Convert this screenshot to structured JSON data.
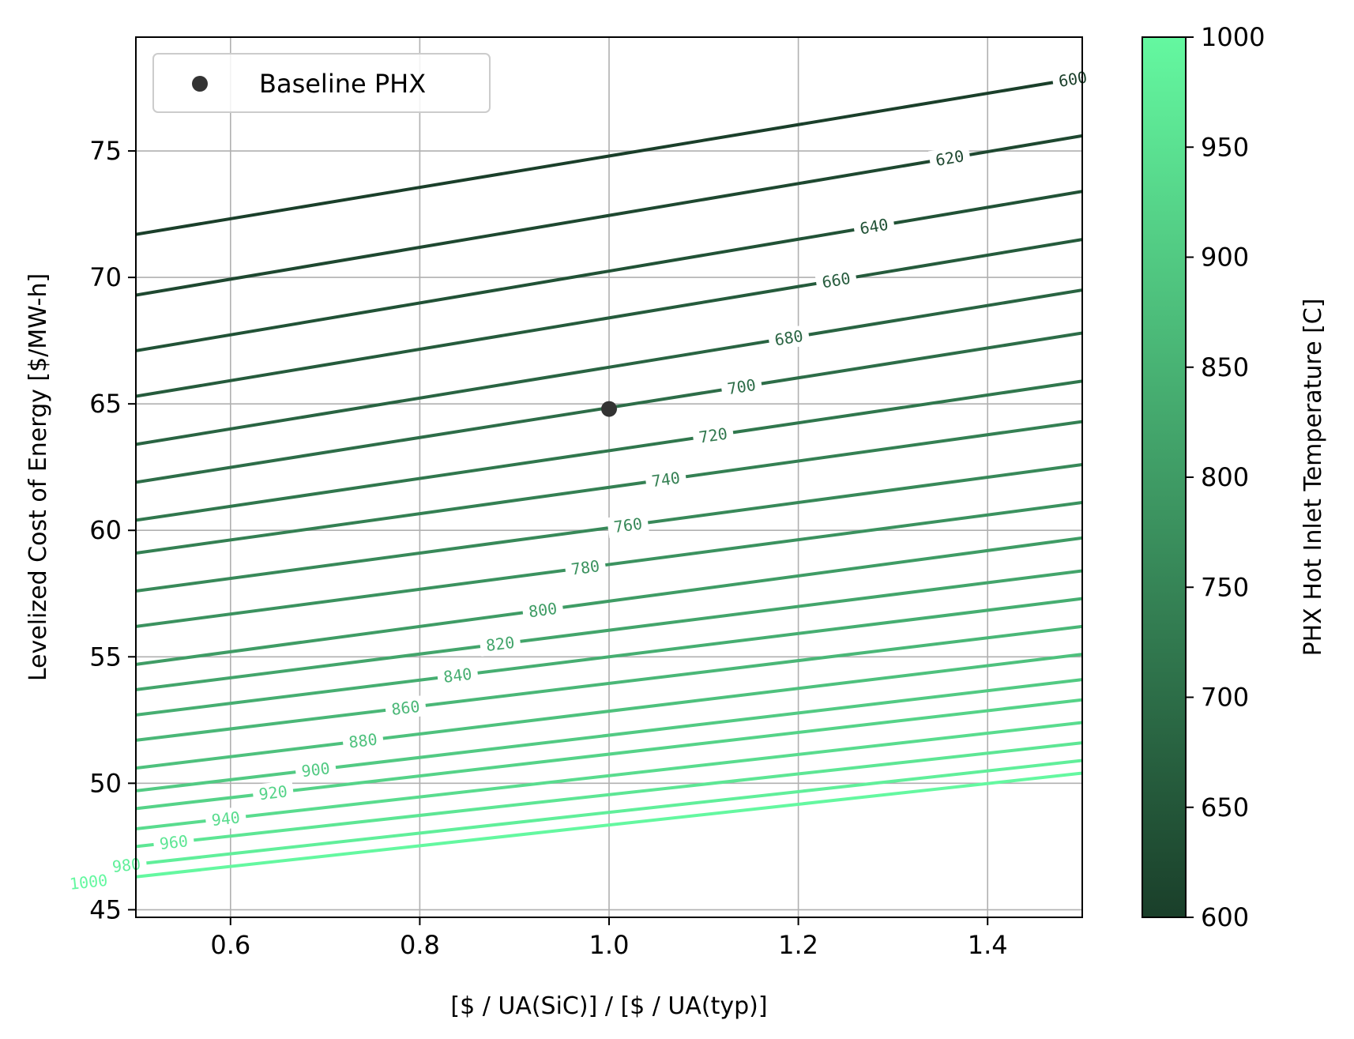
{
  "chart_data": {
    "type": "contour",
    "xlabel": "[$ / UA(SiC)] / [$ / UA(typ)]",
    "ylabel": "Levelized Cost of Energy [$/MW-h]",
    "xlim": [
      0.5,
      1.5
    ],
    "ylim": [
      44.7,
      79.5
    ],
    "xticks": [
      0.6,
      0.8,
      1.0,
      1.2,
      1.4
    ],
    "xtick_labels": [
      "0.6",
      "0.8",
      "1.0",
      "1.2",
      "1.4"
    ],
    "yticks": [
      45,
      50,
      55,
      60,
      65,
      70,
      75
    ],
    "ytick_labels": [
      "45",
      "50",
      "55",
      "60",
      "65",
      "70",
      "75"
    ],
    "grid": true,
    "legend": {
      "placement": "upper-left",
      "entries": [
        "Baseline PHX"
      ]
    },
    "baseline_point": {
      "name": "Baseline PHX",
      "x": 1.0,
      "y": 64.8,
      "color": "#333333"
    },
    "contours": [
      {
        "level": 600,
        "label": "600",
        "y_at_x0_5": 71.7,
        "y_at_x1_5": 77.9,
        "label_x": 1.49
      },
      {
        "level": 620,
        "label": "620",
        "y_at_x0_5": 69.3,
        "y_at_x1_5": 75.6,
        "label_x": 1.36
      },
      {
        "level": 640,
        "label": "640",
        "y_at_x0_5": 67.1,
        "y_at_x1_5": 73.4,
        "label_x": 1.28
      },
      {
        "level": 660,
        "label": "660",
        "y_at_x0_5": 65.3,
        "y_at_x1_5": 71.5,
        "label_x": 1.24
      },
      {
        "level": 680,
        "label": "680",
        "y_at_x0_5": 63.4,
        "y_at_x1_5": 69.5,
        "label_x": 1.19
      },
      {
        "level": 700,
        "label": "700",
        "y_at_x0_5": 61.9,
        "y_at_x1_5": 67.8,
        "label_x": 1.14
      },
      {
        "level": 720,
        "label": "720",
        "y_at_x0_5": 60.4,
        "y_at_x1_5": 65.9,
        "label_x": 1.11
      },
      {
        "level": 740,
        "label": "740",
        "y_at_x0_5": 59.1,
        "y_at_x1_5": 64.3,
        "label_x": 1.06
      },
      {
        "level": 760,
        "label": "760",
        "y_at_x0_5": 57.6,
        "y_at_x1_5": 62.6,
        "label_x": 1.02
      },
      {
        "level": 780,
        "label": "780",
        "y_at_x0_5": 56.2,
        "y_at_x1_5": 61.1,
        "label_x": 0.975
      },
      {
        "level": 800,
        "label": "800",
        "y_at_x0_5": 54.7,
        "y_at_x1_5": 59.7,
        "label_x": 0.93
      },
      {
        "level": 820,
        "label": "820",
        "y_at_x0_5": 53.7,
        "y_at_x1_5": 58.4,
        "label_x": 0.885
      },
      {
        "level": 840,
        "label": "840",
        "y_at_x0_5": 52.7,
        "y_at_x1_5": 57.3,
        "label_x": 0.84
      },
      {
        "level": 860,
        "label": "860",
        "y_at_x0_5": 51.7,
        "y_at_x1_5": 56.2,
        "label_x": 0.785
      },
      {
        "level": 880,
        "label": "880",
        "y_at_x0_5": 50.6,
        "y_at_x1_5": 55.1,
        "label_x": 0.74
      },
      {
        "level": 900,
        "label": "900",
        "y_at_x0_5": 49.7,
        "y_at_x1_5": 54.1,
        "label_x": 0.69
      },
      {
        "level": 920,
        "label": "920",
        "y_at_x0_5": 49.0,
        "y_at_x1_5": 53.3,
        "label_x": 0.645
      },
      {
        "level": 940,
        "label": "940",
        "y_at_x0_5": 48.2,
        "y_at_x1_5": 52.4,
        "label_x": 0.595
      },
      {
        "level": 960,
        "label": "960",
        "y_at_x0_5": 47.5,
        "y_at_x1_5": 51.6,
        "label_x": 0.54
      },
      {
        "level": 980,
        "label": "980",
        "y_at_x0_5": 46.8,
        "y_at_x1_5": 50.9,
        "label_x": 0.49
      },
      {
        "level": 1000,
        "label": "1000",
        "y_at_x0_5": 46.3,
        "y_at_x1_5": 50.4,
        "label_x": 0.45
      }
    ],
    "colorbar": {
      "label": "PHX Hot Inlet Temperature [C]",
      "min": 600,
      "max": 1000,
      "ticks": [
        600,
        650,
        700,
        750,
        800,
        850,
        900,
        950,
        1000
      ],
      "tick_labels": [
        "600",
        "650",
        "700",
        "750",
        "800",
        "850",
        "900",
        "950",
        "1000"
      ],
      "color_low": "#1a3f2a",
      "color_high": "#64f8a0"
    }
  }
}
